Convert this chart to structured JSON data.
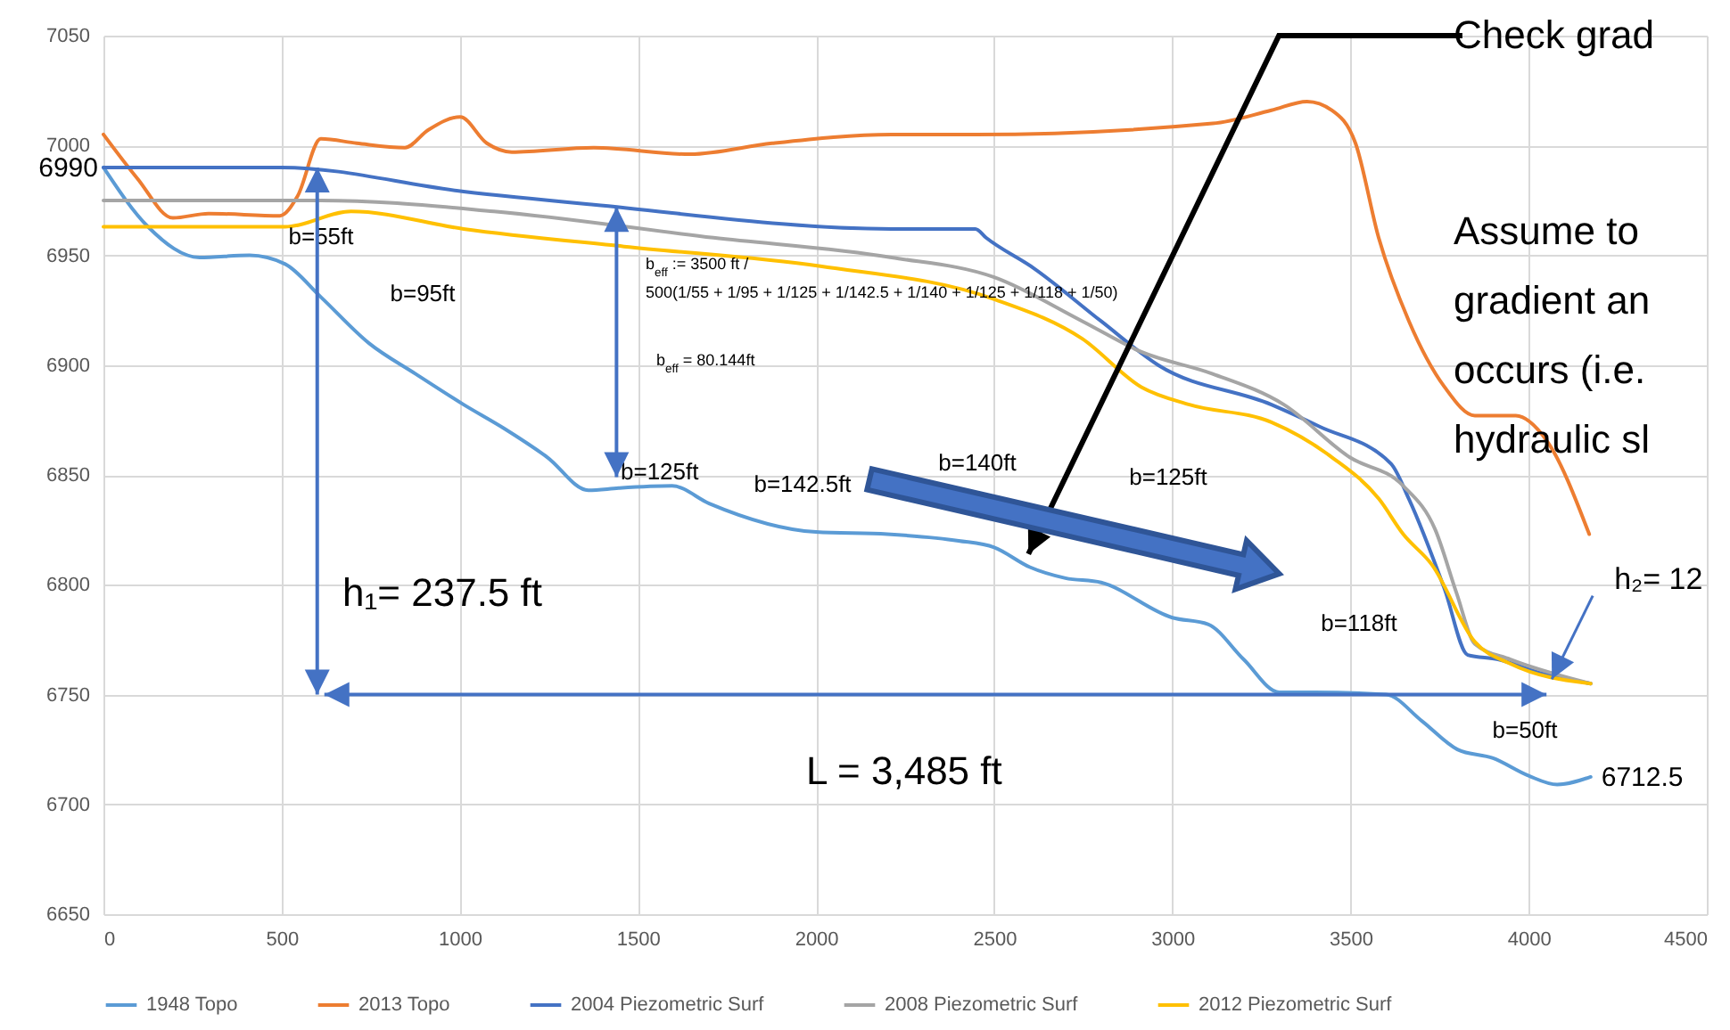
{
  "chart_data": {
    "type": "line",
    "xlim": [
      0,
      4500
    ],
    "xticks": [
      0,
      500,
      1000,
      1500,
      2000,
      2500,
      3000,
      3500,
      4000,
      4500
    ],
    "ylim": [
      6650,
      7050
    ],
    "yticks": [
      6650,
      6700,
      6750,
      6800,
      6850,
      6900,
      6950,
      7000,
      7050
    ],
    "grid": true,
    "legend": "bottom",
    "series": [
      {
        "name": "1948 Topo",
        "color": "#5b9bd5",
        "x": [
          0,
          125,
          270,
          410,
          510,
          610,
          745,
          876,
          1011,
          1126,
          1246,
          1361,
          1446,
          1596,
          1700,
          2000,
          2200,
          2400,
          2500,
          2600,
          2700,
          2800,
          3000,
          3100,
          3200,
          3300,
          3400,
          3600,
          3700,
          3800,
          3900,
          4000,
          4080,
          4174
        ],
        "values": [
          6990,
          6963,
          6949,
          6950,
          6946,
          6931,
          6910,
          6896,
          6882,
          6871,
          6858,
          6843,
          6844,
          6845,
          6837,
          6824,
          6823,
          6820,
          6817,
          6808,
          6803,
          6801,
          6785,
          6782,
          6766,
          6751,
          6751,
          6750,
          6738,
          6725,
          6721,
          6713,
          6709,
          6712.5
        ]
      },
      {
        "name": "2013 Topo",
        "color": "#ed7d31",
        "x": [
          0,
          95,
          195,
          295,
          495,
          545,
          610,
          711,
          846,
          911,
          1001,
          1076,
          1146,
          1376,
          1646,
          1877,
          2212,
          2447,
          3113,
          3278,
          3378,
          3448,
          3514,
          3579,
          3664,
          3764,
          3849,
          3964,
          4049,
          4170
        ],
        "values": [
          7005,
          6985,
          6967,
          6969,
          6968,
          6977,
          7003,
          7001,
          6999,
          7007,
          7013,
          7001,
          6997,
          6999,
          6996,
          7001,
          7005,
          7005,
          7010,
          7016,
          7020,
          7016,
          7001,
          6958,
          6920,
          6890,
          6877,
          6877,
          6866,
          6823
        ]
      },
      {
        "name": "2004 Piezometric Surf",
        "color": "#4472c4",
        "x": [
          0,
          500,
          1011,
          1376,
          2212,
          2447,
          2477,
          2612,
          2800,
          2960,
          3278,
          3413,
          3614,
          3664,
          3764,
          3829,
          3914,
          4029,
          4174
        ],
        "values": [
          6990,
          6990,
          6979,
          6973,
          6962,
          6962,
          6958,
          6944,
          6920,
          6900,
          6882,
          6872,
          6855,
          6839,
          6798,
          6768,
          6766,
          6760,
          6755
        ]
      },
      {
        "name": "2008 Piezometric Surf",
        "color": "#a5a5a5",
        "x": [
          0,
          610,
          1096,
          1712,
          2212,
          2500,
          2747,
          2913,
          3113,
          3313,
          3498,
          3648,
          3738,
          3798,
          3849,
          3949,
          4174
        ],
        "values": [
          6975,
          6975,
          6970,
          6958,
          6949,
          6940,
          6920,
          6906,
          6896,
          6882,
          6858,
          6845,
          6825,
          6796,
          6773,
          6766,
          6755
        ]
      },
      {
        "name": "2012 Piezometric Surf",
        "color": "#ffc000",
        "x": [
          0,
          510,
          695,
          1011,
          1461,
          2012,
          2500,
          2747,
          2913,
          3048,
          3278,
          3448,
          3580,
          3648,
          3729,
          3849,
          3949,
          4174
        ],
        "values": [
          6963,
          6963,
          6970,
          6962,
          6954,
          6945,
          6930,
          6912,
          6890,
          6882,
          6874,
          6858,
          6839,
          6823,
          6809,
          6774,
          6764,
          6755
        ]
      }
    ],
    "annotations": [
      "Check grad",
      "Assume to\ngradient an\noccurs (i.e.\nhydraulic sl",
      "h₁= 237.5 ft",
      "L = 3,485 ft",
      {
        "text": "h₂= 12",
        "x": 4065,
        "y": 6760
      },
      "b$_{eff}$ := 3500 ft /",
      "500(1/55 + 1/95 + 1/125 + 1/142.5 + 1/140 + 1/125 + 1/118 + 1/50)",
      "b$_{eff}$ = 80.144ft",
      {
        "text": "6990",
        "x": 0,
        "y": 6990
      },
      {
        "text": "6712.5",
        "x": 4174,
        "y": 6712.5
      },
      "b=55ft",
      "b=95ft",
      {
        "text": "b=125ft",
        "x": 1446,
        "y": 6844
      },
      "b=142.5ft",
      "b=140ft",
      "b=125ft",
      "b=118ft",
      "b=50ft"
    ]
  }
}
